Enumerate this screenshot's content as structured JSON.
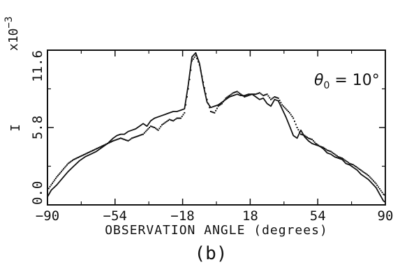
{
  "chart_data": {
    "type": "line",
    "xlabel": "OBSERVATION ANGLE (degrees)",
    "ylabel": "I",
    "y_multiplier_label": "x10",
    "y_multiplier_exponent": "−3",
    "x_ticks": [
      -90,
      -54,
      -18,
      18,
      54,
      90
    ],
    "x_tick_labels": [
      "−90",
      "−54",
      "−18",
      "18",
      "54",
      "90"
    ],
    "y_ticks": [
      0.0,
      5.8,
      11.6
    ],
    "y_tick_labels": [
      "0.0",
      "5.8",
      "11.6"
    ],
    "xlim": [
      -90,
      90
    ],
    "ylim": [
      0,
      11.6
    ],
    "annotation": {
      "symbol": "θ",
      "subscript": "0",
      "rest": " = 10°"
    },
    "panel_label": "(b)",
    "series": [
      {
        "style": "solid",
        "x": [
          -90,
          -88,
          -85,
          -82,
          -79,
          -76,
          -73,
          -70,
          -67,
          -64,
          -61,
          -58,
          -55,
          -53,
          -51,
          -49,
          -47,
          -45,
          -43,
          -41,
          -39,
          -37,
          -35,
          -33,
          -31,
          -29,
          -27,
          -25,
          -23,
          -21,
          -19,
          -17,
          -15,
          -13,
          -11,
          -9,
          -7,
          -5,
          -3,
          -1,
          1,
          3,
          5,
          7,
          9,
          11,
          13,
          15,
          17,
          19,
          21,
          23,
          25,
          27,
          29,
          31,
          33,
          35,
          37,
          39,
          41,
          43,
          45,
          47,
          49,
          51,
          53,
          55,
          57,
          59,
          61,
          63,
          65,
          67,
          69,
          71,
          73,
          75,
          77,
          79,
          81,
          83,
          85,
          87,
          89,
          90
        ],
        "values": [
          0.6,
          1.1,
          1.5,
          2.0,
          2.5,
          2.9,
          3.3,
          3.6,
          3.8,
          4.0,
          4.3,
          4.6,
          5.0,
          5.2,
          5.3,
          5.3,
          5.5,
          5.6,
          5.7,
          5.9,
          6.1,
          5.9,
          6.3,
          6.5,
          6.6,
          6.7,
          6.8,
          6.9,
          7.0,
          7.0,
          7.1,
          7.2,
          9.0,
          11.1,
          11.4,
          10.6,
          9.0,
          7.7,
          7.3,
          7.4,
          7.5,
          7.7,
          7.9,
          8.1,
          8.2,
          8.3,
          8.2,
          8.2,
          8.3,
          8.3,
          8.1,
          7.9,
          8.0,
          7.6,
          7.4,
          7.9,
          7.8,
          7.2,
          6.6,
          5.9,
          5.2,
          5.0,
          5.6,
          5.1,
          4.8,
          4.6,
          4.5,
          4.4,
          4.2,
          3.9,
          3.8,
          3.6,
          3.5,
          3.4,
          3.1,
          3.0,
          2.8,
          2.6,
          2.3,
          2.1,
          1.9,
          1.6,
          1.3,
          0.8,
          0.3,
          0.2
        ]
      },
      {
        "style": "dotted",
        "x": [
          -90,
          -88,
          -85,
          -82,
          -79,
          -76,
          -73,
          -70,
          -67,
          -64,
          -61,
          -58,
          -55,
          -53,
          -51,
          -49,
          -47,
          -45,
          -43,
          -41,
          -39,
          -37,
          -35,
          -33,
          -31,
          -29,
          -27,
          -25,
          -23,
          -21,
          -19,
          -17,
          -15,
          -13,
          -11,
          -9,
          -7,
          -5,
          -3,
          -1,
          1,
          3,
          5,
          7,
          9,
          11,
          13,
          15,
          17,
          19,
          21,
          23,
          25,
          27,
          29,
          31,
          33,
          35,
          37,
          39,
          41,
          43,
          45,
          47,
          49,
          51,
          53,
          55,
          57,
          59,
          61,
          63,
          65,
          67,
          69,
          71,
          73,
          75,
          77,
          79,
          81,
          83,
          85,
          87,
          89,
          90
        ],
        "values": [
          1.1,
          1.5,
          2.1,
          2.6,
          3.1,
          3.4,
          3.6,
          3.8,
          4.0,
          4.2,
          4.4,
          4.6,
          4.8,
          4.9,
          5.0,
          4.9,
          4.8,
          5.0,
          5.1,
          5.2,
          5.3,
          5.6,
          5.9,
          5.8,
          5.6,
          6.0,
          6.2,
          6.4,
          6.3,
          6.5,
          6.5,
          6.9,
          8.7,
          10.8,
          11.2,
          10.5,
          9.2,
          7.9,
          7.0,
          6.9,
          7.4,
          7.6,
          8.0,
          8.2,
          8.4,
          8.5,
          8.3,
          8.1,
          8.2,
          8.3,
          8.3,
          8.4,
          8.2,
          8.3,
          7.9,
          8.1,
          8.0,
          7.5,
          7.2,
          6.9,
          6.5,
          5.8,
          5.3,
          5.2,
          5.0,
          4.9,
          4.6,
          4.4,
          4.3,
          4.1,
          4.0,
          3.8,
          3.6,
          3.5,
          3.3,
          3.1,
          3.0,
          2.8,
          2.6,
          2.4,
          2.2,
          1.9,
          1.6,
          1.2,
          0.8,
          0.7
        ]
      }
    ]
  }
}
